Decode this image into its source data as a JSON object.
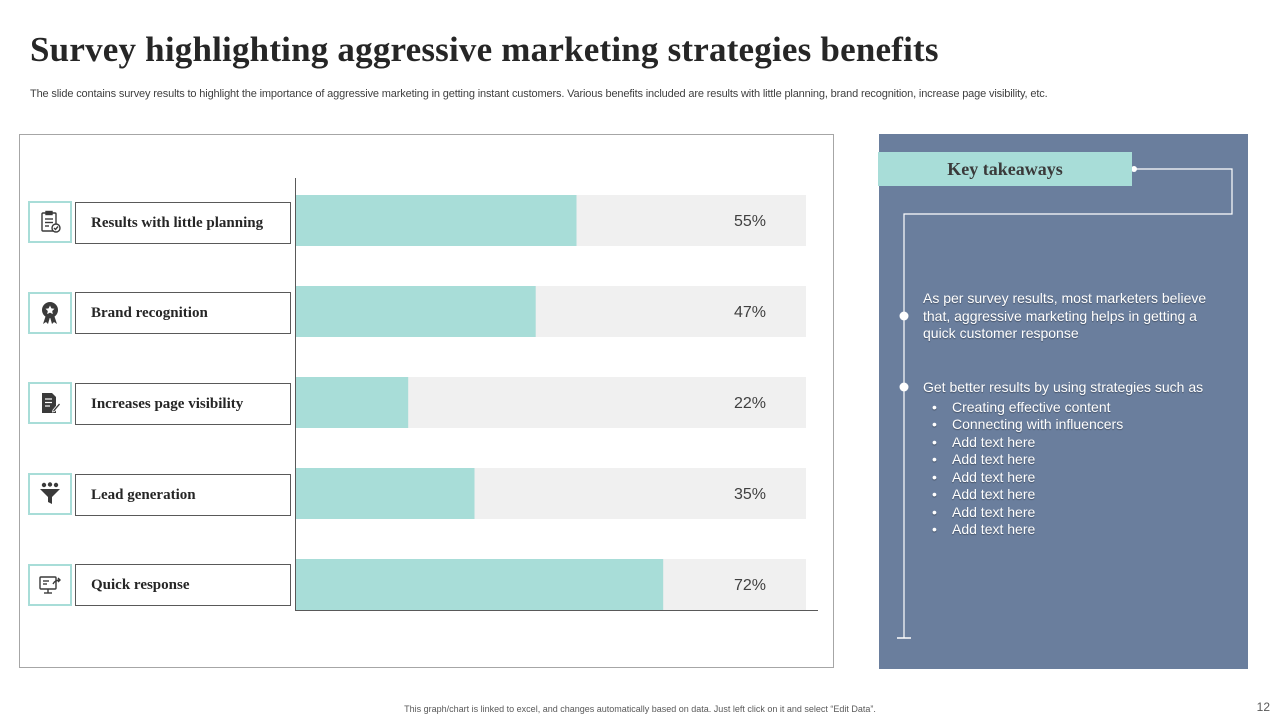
{
  "title": "Survey highlighting aggressive marketing strategies benefits",
  "subtitle": "The slide contains survey results to highlight the importance of aggressive marketing in getting instant customers. Various benefits included are results with little planning, brand recognition, increase page visibility, etc.",
  "chart_data": {
    "type": "bar",
    "orientation": "horizontal",
    "categories": [
      "Results with  little planning",
      "Brand recognition",
      "Increases page visibility",
      "Lead generation",
      "Quick response"
    ],
    "values": [
      55,
      47,
      22,
      35,
      72
    ],
    "value_labels": [
      "55%",
      "47%",
      "22%",
      "35%",
      "72%"
    ],
    "xlim": [
      0,
      100
    ],
    "unit": "%",
    "bar_color": "#a8ddd8",
    "track_color": "#f0f0f0",
    "icons": [
      "checklist-icon",
      "award-ribbon-icon",
      "document-edit-icon",
      "funnel-people-icon",
      "monitor-share-icon"
    ]
  },
  "takeaways": {
    "heading": "Key takeaways",
    "point1": "As per survey results, most marketers believe that, aggressive marketing helps in getting a quick customer response",
    "point2": "Get better results by using strategies such as",
    "sub_items": [
      "Creating effective content",
      "Connecting with influencers",
      "Add text here",
      "Add text here",
      "Add text here",
      "Add text here",
      "Add text here",
      "Add text here"
    ]
  },
  "footer_note": "This graph/chart is linked to excel, and changes automatically based on data. Just left click on it and select “Edit Data”.",
  "page_number": "12",
  "colors": {
    "accent_teal": "#a8ddd8",
    "panel_blue": "#6a7e9d",
    "title_text": "#262626"
  }
}
